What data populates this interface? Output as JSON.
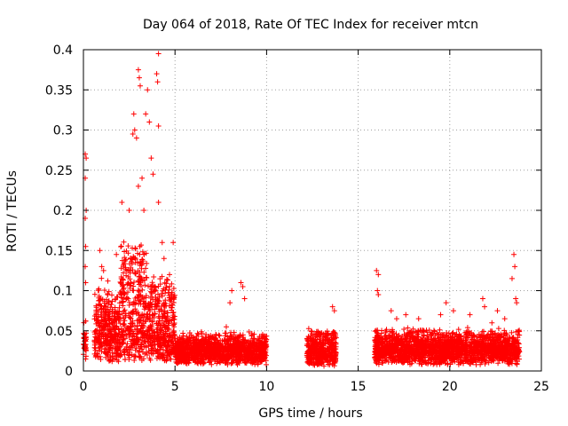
{
  "chart_data": {
    "type": "scatter",
    "title": "Day 064 of 2018, Rate Of TEC Index for receiver mtcn",
    "xlabel": "GPS time / hours",
    "ylabel": "ROTI / TECUs",
    "xlim": [
      0,
      25
    ],
    "ylim": [
      0,
      0.4
    ],
    "xticks": [
      0,
      5,
      10,
      15,
      20,
      25
    ],
    "xtick_labels": [
      "0",
      "5",
      "10",
      "15",
      "20",
      "25"
    ],
    "yticks": [
      0,
      0.05,
      0.1,
      0.15,
      0.2,
      0.25,
      0.3,
      0.35,
      0.4
    ],
    "ytick_labels": [
      "0",
      "0.05",
      "0.1",
      "0.15",
      "0.2",
      "0.25",
      "0.3",
      "0.35",
      "0.4"
    ],
    "grid": true,
    "marker": "+",
    "color": "#ff0000",
    "segments": [
      {
        "x_start": 0.0,
        "x_end": 0.15,
        "y_base": 0.03,
        "y_spread": 0.04
      },
      {
        "x_start": 0.6,
        "x_end": 1.4,
        "y_base": 0.04,
        "y_spread": 0.07
      },
      {
        "x_start": 1.4,
        "x_end": 2.0,
        "y_base": 0.035,
        "y_spread": 0.06
      },
      {
        "x_start": 2.0,
        "x_end": 3.5,
        "y_base": 0.04,
        "y_spread": 0.12
      },
      {
        "x_start": 3.5,
        "x_end": 5.0,
        "y_base": 0.035,
        "y_spread": 0.08
      },
      {
        "x_start": 5.0,
        "x_end": 10.0,
        "y_base": 0.025,
        "y_spread": 0.02
      },
      {
        "x_start": 12.2,
        "x_end": 13.8,
        "y_base": 0.02,
        "y_spread": 0.03
      },
      {
        "x_start": 15.9,
        "x_end": 23.8,
        "y_base": 0.025,
        "y_spread": 0.025
      }
    ],
    "notable_points": [
      {
        "x": 0.1,
        "y": 0.27
      },
      {
        "x": 0.15,
        "y": 0.265
      },
      {
        "x": 0.1,
        "y": 0.24
      },
      {
        "x": 0.15,
        "y": 0.2
      },
      {
        "x": 0.1,
        "y": 0.19
      },
      {
        "x": 0.12,
        "y": 0.155
      },
      {
        "x": 0.1,
        "y": 0.13
      },
      {
        "x": 0.12,
        "y": 0.11
      },
      {
        "x": 0.9,
        "y": 0.15
      },
      {
        "x": 1.0,
        "y": 0.13
      },
      {
        "x": 1.1,
        "y": 0.125
      },
      {
        "x": 1.8,
        "y": 0.145
      },
      {
        "x": 2.1,
        "y": 0.21
      },
      {
        "x": 2.5,
        "y": 0.2
      },
      {
        "x": 2.7,
        "y": 0.295
      },
      {
        "x": 2.75,
        "y": 0.32
      },
      {
        "x": 2.8,
        "y": 0.3
      },
      {
        "x": 2.9,
        "y": 0.29
      },
      {
        "x": 3.0,
        "y": 0.375
      },
      {
        "x": 3.05,
        "y": 0.365
      },
      {
        "x": 3.1,
        "y": 0.355
      },
      {
        "x": 3.5,
        "y": 0.35
      },
      {
        "x": 3.4,
        "y": 0.32
      },
      {
        "x": 3.2,
        "y": 0.24
      },
      {
        "x": 3.0,
        "y": 0.23
      },
      {
        "x": 3.3,
        "y": 0.2
      },
      {
        "x": 3.6,
        "y": 0.31
      },
      {
        "x": 3.7,
        "y": 0.265
      },
      {
        "x": 3.8,
        "y": 0.245
      },
      {
        "x": 4.1,
        "y": 0.305
      },
      {
        "x": 4.1,
        "y": 0.395
      },
      {
        "x": 4.0,
        "y": 0.37
      },
      {
        "x": 4.05,
        "y": 0.36
      },
      {
        "x": 4.1,
        "y": 0.21
      },
      {
        "x": 4.3,
        "y": 0.16
      },
      {
        "x": 4.4,
        "y": 0.14
      },
      {
        "x": 4.9,
        "y": 0.16
      },
      {
        "x": 4.7,
        "y": 0.12
      },
      {
        "x": 8.1,
        "y": 0.1
      },
      {
        "x": 8.0,
        "y": 0.085
      },
      {
        "x": 8.6,
        "y": 0.11
      },
      {
        "x": 8.7,
        "y": 0.105
      },
      {
        "x": 8.8,
        "y": 0.09
      },
      {
        "x": 7.8,
        "y": 0.055
      },
      {
        "x": 13.6,
        "y": 0.08
      },
      {
        "x": 13.7,
        "y": 0.075
      },
      {
        "x": 16.0,
        "y": 0.125
      },
      {
        "x": 16.1,
        "y": 0.12
      },
      {
        "x": 16.05,
        "y": 0.1
      },
      {
        "x": 16.1,
        "y": 0.095
      },
      {
        "x": 16.8,
        "y": 0.075
      },
      {
        "x": 17.1,
        "y": 0.065
      },
      {
        "x": 17.6,
        "y": 0.07
      },
      {
        "x": 18.3,
        "y": 0.065
      },
      {
        "x": 19.5,
        "y": 0.07
      },
      {
        "x": 19.8,
        "y": 0.085
      },
      {
        "x": 20.2,
        "y": 0.075
      },
      {
        "x": 21.1,
        "y": 0.07
      },
      {
        "x": 21.8,
        "y": 0.09
      },
      {
        "x": 21.9,
        "y": 0.08
      },
      {
        "x": 22.3,
        "y": 0.06
      },
      {
        "x": 22.6,
        "y": 0.075
      },
      {
        "x": 23.0,
        "y": 0.065
      },
      {
        "x": 23.5,
        "y": 0.145
      },
      {
        "x": 23.55,
        "y": 0.13
      },
      {
        "x": 23.4,
        "y": 0.115
      },
      {
        "x": 23.6,
        "y": 0.09
      },
      {
        "x": 23.65,
        "y": 0.085
      }
    ]
  }
}
